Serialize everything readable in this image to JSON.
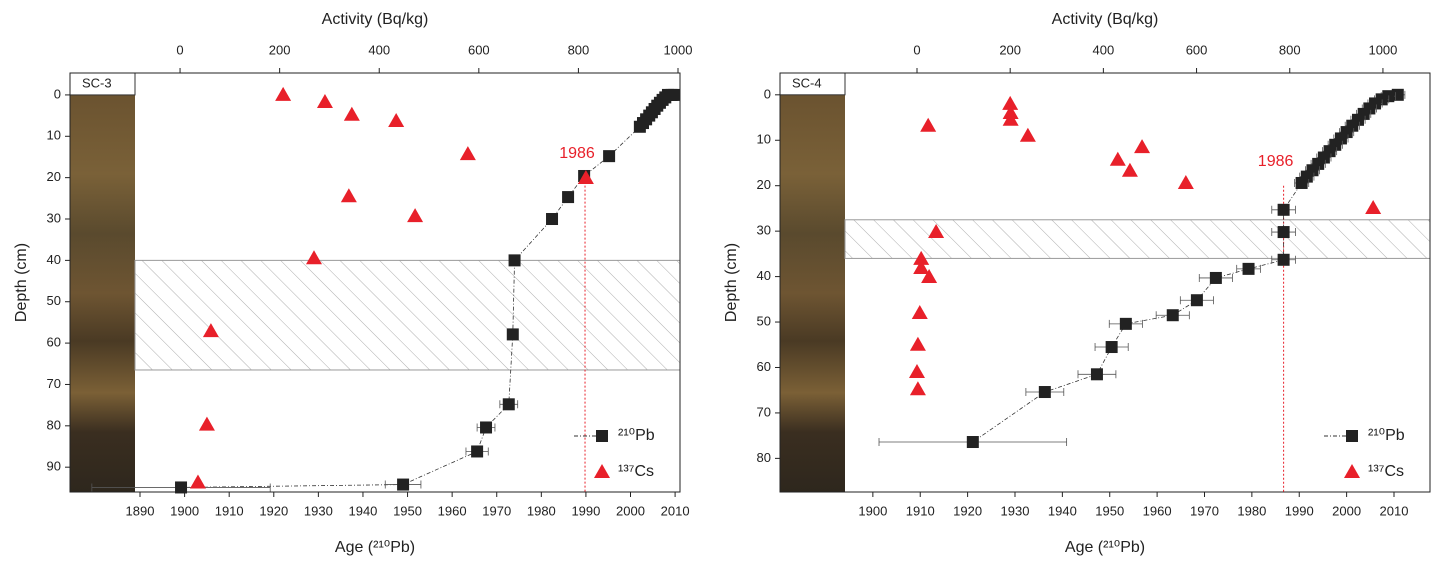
{
  "chart_data": [
    {
      "type": "scatter",
      "core": "SC-3",
      "x_label": "Age (²¹⁰Pb)",
      "x2_label": "Activity (Bq/kg)",
      "y_label": "Depth (cm)",
      "xlim": [
        1874.3,
        2011.1
      ],
      "xticks": [
        1890,
        1900,
        1910,
        1920,
        1930,
        1940,
        1950,
        1960,
        1970,
        1980,
        1990,
        2000,
        2010
      ],
      "x2lim": [
        -221,
        1004
      ],
      "x2ticks": [
        0,
        200,
        400,
        600,
        800,
        1000
      ],
      "ylim": [
        -5.3,
        96
      ],
      "y_inverted": true,
      "yticks": [
        0,
        10,
        20,
        30,
        40,
        50,
        60,
        70,
        80,
        90
      ],
      "hatched_range": [
        40,
        66.5
      ],
      "legend": "lower right",
      "annotation": {
        "text": "1986",
        "age": 1989.8,
        "depth": 20
      },
      "series": [
        {
          "name": "²¹⁰Pb",
          "color": "#222222",
          "marker": "square",
          "axis": "x",
          "x": [
            2009.8,
            2009.2,
            2008.4,
            2007.8,
            2007.2,
            2006.6,
            2006.0,
            2005.4,
            2004.8,
            2004.2,
            2003.5,
            2002.8,
            2002.1,
            1995.2,
            1989.6,
            1986.0,
            1982.4,
            1974.0,
            1973.6,
            1972.7,
            1967.6,
            1965.6,
            1949.0,
            1899.2
          ],
          "values": [
            0,
            0,
            0,
            0.6,
            1.2,
            1.9,
            2.6,
            3.4,
            4.2,
            5.0,
            5.9,
            6.8,
            7.7,
            14.8,
            19.6,
            24.7,
            30,
            40,
            57.9,
            74.8,
            80.4,
            86.2,
            94.2,
            94.9
          ],
          "errors": [
            0,
            0,
            0,
            0,
            0,
            0,
            0,
            0,
            0,
            0,
            0,
            0,
            0,
            0,
            0,
            0,
            0,
            0.5,
            0.5,
            2,
            2,
            2.5,
            4,
            20
          ]
        },
        {
          "name": "¹³⁷Cs",
          "color": "#e8202a",
          "marker": "triangle",
          "axis": "x2",
          "x": [
            207,
            291,
            345,
            434,
            578,
            815,
            339,
            472,
            269,
            62,
            54,
            36
          ],
          "values": [
            0,
            1.7,
            4.8,
            6.3,
            14.3,
            20.1,
            24.5,
            29.3,
            39.5,
            57.1,
            79.7,
            93.7
          ]
        }
      ]
    },
    {
      "type": "scatter",
      "core": "SC-4",
      "x_label": "Age (²¹⁰Pb)",
      "x2_label": "Activity (Bq/kg)",
      "y_label": "Depth (cm)",
      "xlim": [
        1880.4,
        2017.6
      ],
      "xticks": [
        1900,
        1910,
        1920,
        1930,
        1940,
        1950,
        1960,
        1970,
        1980,
        1990,
        2000,
        2010
      ],
      "x2lim": [
        -294,
        1101
      ],
      "x2ticks": [
        0,
        200,
        400,
        600,
        800,
        1000
      ],
      "ylim": [
        -4.8,
        87.4
      ],
      "y_inverted": true,
      "yticks": [
        0,
        10,
        20,
        30,
        40,
        50,
        60,
        70,
        80
      ],
      "hatched_range": [
        27.5,
        36
      ],
      "legend": "lower right",
      "annotation": {
        "text": "1986",
        "age": 1986.7,
        "depth": 20
      },
      "series": [
        {
          "name": "²¹⁰Pb",
          "color": "#222222",
          "marker": "square",
          "axis": "x",
          "x": [
            2010.8,
            2008.8,
            2007.4,
            2006.0,
            2004.8,
            2003.6,
            2002.4,
            2001.2,
            2000.0,
            1998.8,
            1997.6,
            1996.4,
            1995.2,
            1994.0,
            1992.8,
            1991.6,
            1990.5,
            1986.7,
            1986.7,
            1986.7,
            1979.3,
            1972.4,
            1968.4,
            1963.3,
            1953.4,
            1950.4,
            1947.3,
            1936.3,
            1921.1
          ],
          "values": [
            0,
            0.3,
            1,
            1.9,
            3,
            4.2,
            5.5,
            6.8,
            8.2,
            9.6,
            11,
            12.4,
            13.8,
            15.2,
            16.6,
            18,
            19.4,
            25.3,
            30.2,
            36.3,
            38.3,
            40.3,
            45.2,
            48.5,
            50.4,
            55.5,
            61.5,
            65.4,
            76.4
          ],
          "errors": [
            1.5,
            1.5,
            1.5,
            1.5,
            1.5,
            1.5,
            1.5,
            1.5,
            1.5,
            1.5,
            1.5,
            1.5,
            1.5,
            1.5,
            1.5,
            1.5,
            1.5,
            2.5,
            2.5,
            2.5,
            2.5,
            3.5,
            3.5,
            3.5,
            3.5,
            3.5,
            4,
            4,
            19.8
          ]
        },
        {
          "name": "¹³⁷Cs",
          "color": "#e8202a",
          "marker": "triangle",
          "axis": "x2",
          "x": [
            200,
            201,
            201,
            24,
            238,
            483,
            431,
            457,
            577,
            979,
            41,
            9,
            9,
            26,
            6,
            2,
            0,
            2
          ],
          "values": [
            2,
            4,
            5.5,
            6.8,
            9,
            11.5,
            14.3,
            16.7,
            19.4,
            24.9,
            30.2,
            36.1,
            38.1,
            40.1,
            48,
            55,
            61,
            64.8
          ]
        }
      ]
    }
  ]
}
